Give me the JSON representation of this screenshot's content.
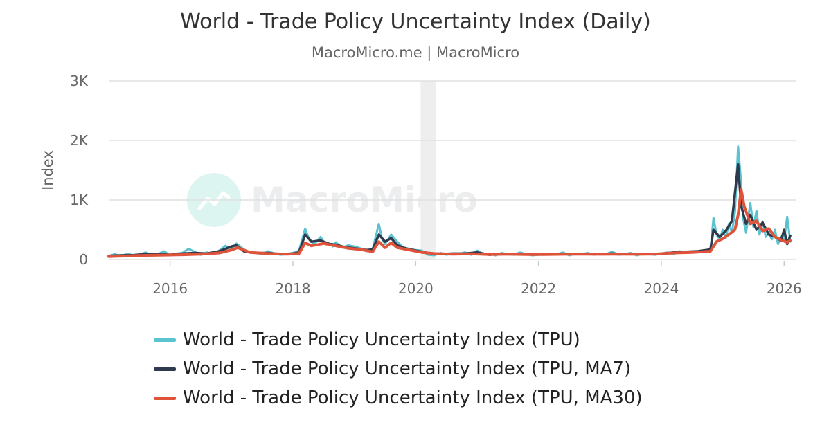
{
  "title": "World - Trade Policy Uncertainty Index (Daily)",
  "subtitle": "MacroMicro.me | MacroMicro",
  "watermark": "MacroMicro",
  "colors": {
    "tpu": "#5bc2cf",
    "ma7": "#2f3b4c",
    "ma30": "#e0533b",
    "grid": "#e0e0e0",
    "recession_band": "#eeeeee"
  },
  "chart_data": {
    "type": "line",
    "ylabel": "Index",
    "ylim": [
      0,
      3000
    ],
    "y_ticks": [
      {
        "value": 0,
        "label": "0"
      },
      {
        "value": 1000,
        "label": "1K"
      },
      {
        "value": 2000,
        "label": "2K"
      },
      {
        "value": 3000,
        "label": "3K"
      }
    ],
    "xlim": [
      2015.0,
      2026.2
    ],
    "x_ticks": [
      {
        "value": 2016,
        "label": "2016"
      },
      {
        "value": 2018,
        "label": "2018"
      },
      {
        "value": 2020,
        "label": "2020"
      },
      {
        "value": 2022,
        "label": "2022"
      },
      {
        "value": 2024,
        "label": "2024"
      },
      {
        "value": 2026,
        "label": "2026"
      }
    ],
    "shaded_periods": [
      [
        2020.08,
        2020.33
      ]
    ],
    "grid": true,
    "legend_position": "bottom",
    "series": [
      {
        "name": "World - Trade Policy Uncertainty Index (TPU)",
        "color_key": "tpu",
        "x": [
          2015.0,
          2015.1,
          2015.2,
          2015.3,
          2015.4,
          2015.5,
          2015.6,
          2015.7,
          2015.8,
          2015.9,
          2016.0,
          2016.1,
          2016.2,
          2016.3,
          2016.4,
          2016.5,
          2016.6,
          2016.7,
          2016.8,
          2016.9,
          2017.0,
          2017.08,
          2017.2,
          2017.3,
          2017.4,
          2017.5,
          2017.6,
          2017.7,
          2017.8,
          2017.9,
          2018.0,
          2018.1,
          2018.2,
          2018.25,
          2018.3,
          2018.35,
          2018.45,
          2018.5,
          2018.6,
          2018.65,
          2018.7,
          2018.8,
          2018.9,
          2019.0,
          2019.1,
          2019.2,
          2019.3,
          2019.4,
          2019.45,
          2019.5,
          2019.6,
          2019.7,
          2019.8,
          2019.9,
          2020.0,
          2020.1,
          2020.2,
          2020.3,
          2020.4,
          2020.5,
          2020.6,
          2020.7,
          2020.8,
          2020.9,
          2021.0,
          2021.1,
          2021.2,
          2021.3,
          2021.4,
          2021.5,
          2021.6,
          2021.7,
          2021.8,
          2021.9,
          2022.0,
          2022.1,
          2022.2,
          2022.3,
          2022.4,
          2022.5,
          2022.6,
          2022.7,
          2022.8,
          2022.9,
          2023.0,
          2023.1,
          2023.2,
          2023.3,
          2023.4,
          2023.5,
          2023.6,
          2023.7,
          2023.8,
          2023.9,
          2024.0,
          2024.1,
          2024.2,
          2024.3,
          2024.4,
          2024.5,
          2024.6,
          2024.7,
          2024.8,
          2024.85,
          2024.9,
          2024.95,
          2025.0,
          2025.05,
          2025.1,
          2025.15,
          2025.2,
          2025.25,
          2025.3,
          2025.33,
          2025.38,
          2025.45,
          2025.5,
          2025.55,
          2025.6,
          2025.65,
          2025.7,
          2025.75,
          2025.8,
          2025.85,
          2025.9,
          2025.95,
          2026.0,
          2026.05,
          2026.1
        ],
        "values": [
          60,
          90,
          50,
          100,
          70,
          80,
          120,
          60,
          90,
          140,
          70,
          100,
          110,
          180,
          130,
          80,
          120,
          90,
          150,
          230,
          180,
          270,
          170,
          120,
          110,
          90,
          140,
          100,
          80,
          90,
          110,
          150,
          520,
          380,
          300,
          260,
          380,
          300,
          260,
          220,
          290,
          200,
          240,
          220,
          190,
          140,
          180,
          600,
          350,
          260,
          420,
          300,
          200,
          180,
          160,
          150,
          80,
          70,
          110,
          80,
          100,
          90,
          120,
          80,
          150,
          90,
          100,
          70,
          110,
          90,
          80,
          120,
          90,
          70,
          80,
          100,
          80,
          90,
          120,
          70,
          100,
          90,
          110,
          80,
          100,
          90,
          130,
          80,
          90,
          110,
          70,
          100,
          90,
          80,
          100,
          120,
          90,
          140,
          110,
          120,
          130,
          150,
          160,
          700,
          420,
          340,
          500,
          360,
          600,
          450,
          800,
          1900,
          1300,
          700,
          450,
          950,
          550,
          820,
          420,
          640,
          380,
          450,
          340,
          500,
          260,
          380,
          320,
          720,
          300
        ]
      },
      {
        "name": "World - Trade Policy Uncertainty Index (TPU, MA7)",
        "color_key": "ma7",
        "x": [
          2015.0,
          2015.2,
          2015.4,
          2015.6,
          2015.8,
          2016.0,
          2016.2,
          2016.4,
          2016.6,
          2016.8,
          2017.0,
          2017.08,
          2017.2,
          2017.4,
          2017.6,
          2017.8,
          2018.0,
          2018.1,
          2018.2,
          2018.3,
          2018.45,
          2018.6,
          2018.7,
          2018.8,
          2018.9,
          2019.0,
          2019.2,
          2019.3,
          2019.4,
          2019.5,
          2019.6,
          2019.7,
          2019.8,
          2019.9,
          2020.0,
          2020.2,
          2020.4,
          2020.6,
          2020.8,
          2021.0,
          2021.2,
          2021.4,
          2021.6,
          2021.8,
          2022.0,
          2022.2,
          2022.4,
          2022.6,
          2022.8,
          2023.0,
          2023.2,
          2023.4,
          2023.6,
          2023.8,
          2024.0,
          2024.2,
          2024.4,
          2024.6,
          2024.8,
          2024.85,
          2024.95,
          2025.05,
          2025.15,
          2025.25,
          2025.3,
          2025.38,
          2025.45,
          2025.55,
          2025.65,
          2025.75,
          2025.85,
          2025.95,
          2026.0,
          2026.05,
          2026.1
        ],
        "values": [
          60,
          70,
          75,
          90,
          90,
          80,
          100,
          110,
          100,
          140,
          220,
          240,
          140,
          110,
          110,
          90,
          100,
          120,
          420,
          300,
          320,
          260,
          250,
          220,
          200,
          190,
          160,
          170,
          420,
          300,
          360,
          240,
          200,
          170,
          150,
          110,
          90,
          100,
          100,
          120,
          80,
          95,
          90,
          85,
          85,
          90,
          95,
          90,
          95,
          90,
          100,
          90,
          95,
          90,
          95,
          120,
          130,
          140,
          170,
          500,
          380,
          480,
          650,
          1600,
          900,
          600,
          750,
          500,
          620,
          420,
          380,
          320,
          500,
          260,
          400
        ]
      },
      {
        "name": "World - Trade Policy Uncertainty Index (TPU, MA30)",
        "color_key": "ma30",
        "x": [
          2015.0,
          2015.3,
          2015.6,
          2015.9,
          2016.2,
          2016.5,
          2016.8,
          2017.0,
          2017.1,
          2017.3,
          2017.6,
          2017.9,
          2018.1,
          2018.2,
          2018.3,
          2018.5,
          2018.7,
          2018.9,
          2019.1,
          2019.3,
          2019.4,
          2019.5,
          2019.6,
          2019.7,
          2019.9,
          2020.1,
          2020.3,
          2020.6,
          2020.9,
          2021.2,
          2021.5,
          2021.8,
          2022.1,
          2022.4,
          2022.7,
          2023.0,
          2023.3,
          2023.6,
          2023.9,
          2024.2,
          2024.5,
          2024.8,
          2024.9,
          2025.0,
          2025.1,
          2025.2,
          2025.25,
          2025.3,
          2025.35,
          2025.45,
          2025.55,
          2025.65,
          2025.75,
          2025.85,
          2025.95,
          2026.05,
          2026.1
        ],
        "values": [
          50,
          60,
          70,
          75,
          80,
          90,
          110,
          160,
          200,
          120,
          100,
          90,
          100,
          280,
          230,
          270,
          230,
          190,
          170,
          130,
          300,
          200,
          280,
          200,
          160,
          120,
          100,
          90,
          95,
          85,
          90,
          85,
          85,
          88,
          90,
          88,
          90,
          88,
          92,
          110,
          120,
          140,
          300,
          350,
          420,
          500,
          750,
          1180,
          900,
          600,
          650,
          480,
          520,
          380,
          330,
          290,
          320
        ]
      }
    ]
  }
}
